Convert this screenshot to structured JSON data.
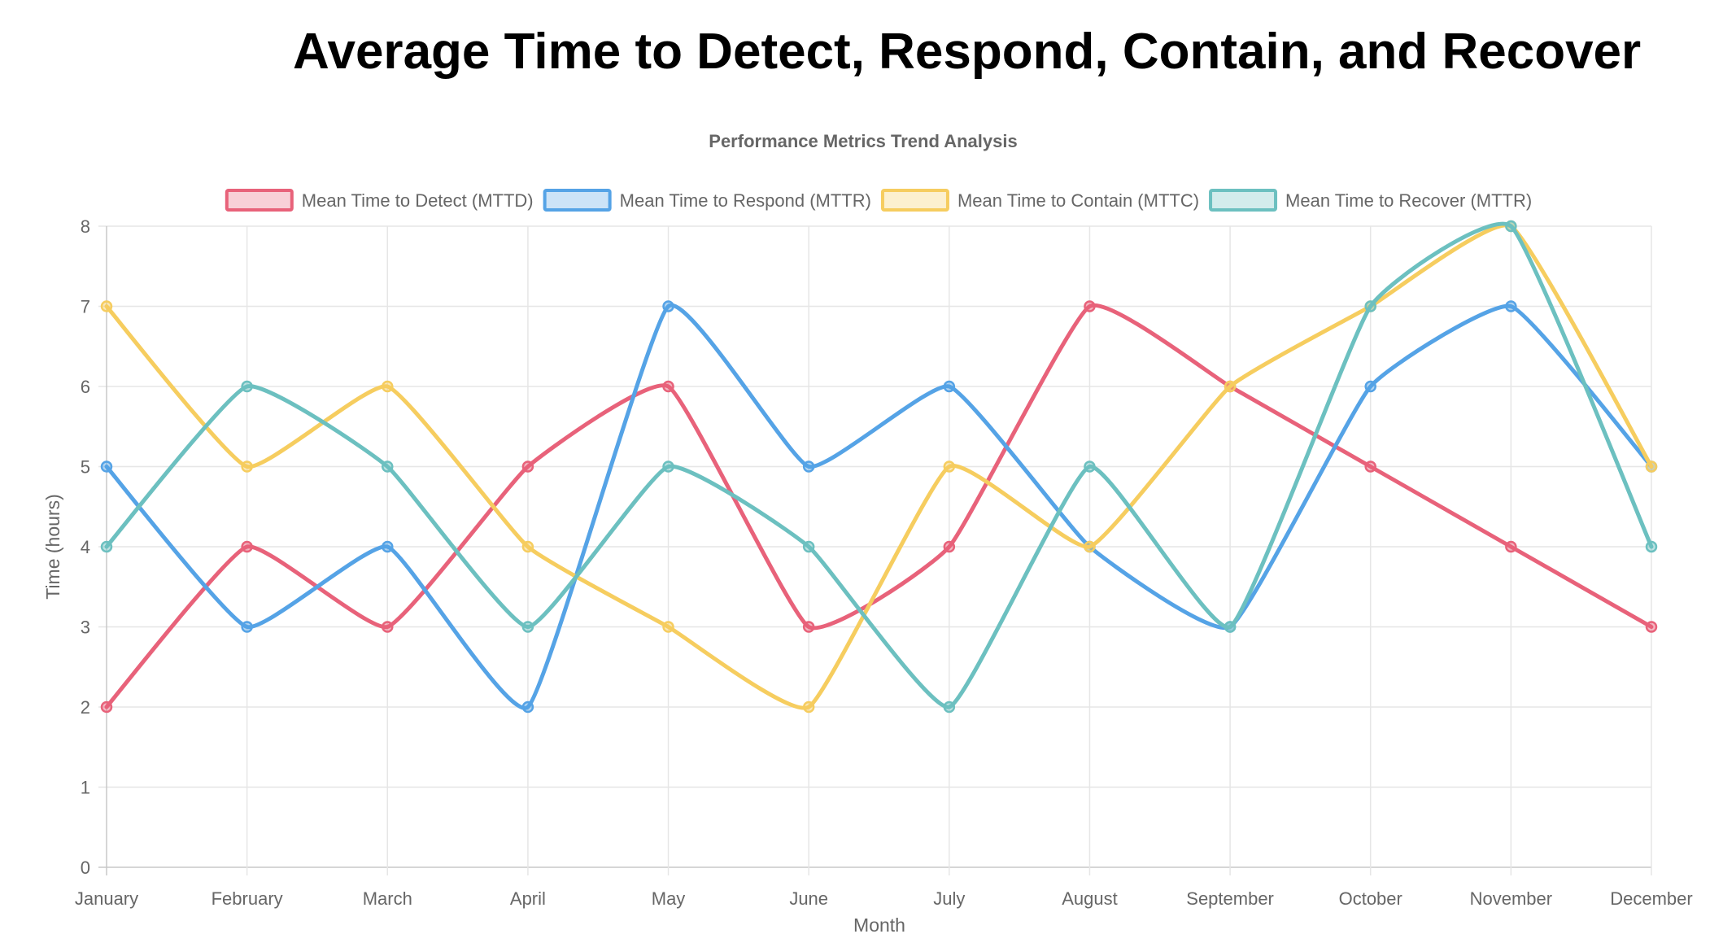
{
  "page": {
    "title": "Average Time to Detect, Respond, Contain, and Recover"
  },
  "chart_data": {
    "type": "line",
    "title": "Performance Metrics Trend Analysis",
    "xlabel": "Month",
    "ylabel": "Time (hours)",
    "ylim": [
      0,
      8
    ],
    "yticks": [
      "0",
      "1",
      "2",
      "3",
      "4",
      "5",
      "6",
      "7",
      "8"
    ],
    "grid": true,
    "legend_position": "top",
    "categories": [
      "January",
      "February",
      "March",
      "April",
      "May",
      "June",
      "July",
      "August",
      "September",
      "October",
      "November",
      "December"
    ],
    "series": [
      {
        "name": "Mean Time to Detect (MTTD)",
        "color": "#e8627a",
        "values": [
          2,
          4,
          3,
          5,
          6,
          3,
          4,
          7,
          6,
          5,
          4,
          3
        ]
      },
      {
        "name": "Mean Time to Respond (MTTR)",
        "color": "#55a3e6",
        "values": [
          5,
          3,
          4,
          2,
          7,
          5,
          6,
          4,
          3,
          6,
          7,
          5
        ]
      },
      {
        "name": "Mean Time to Contain (MTTC)",
        "color": "#f6cd5f",
        "values": [
          7,
          5,
          6,
          4,
          3,
          2,
          5,
          4,
          6,
          7,
          8,
          5
        ]
      },
      {
        "name": "Mean Time to Recover (MTTR)",
        "color": "#6cc0c0",
        "values": [
          4,
          6,
          5,
          3,
          5,
          4,
          2,
          5,
          3,
          7,
          8,
          4
        ]
      }
    ]
  }
}
